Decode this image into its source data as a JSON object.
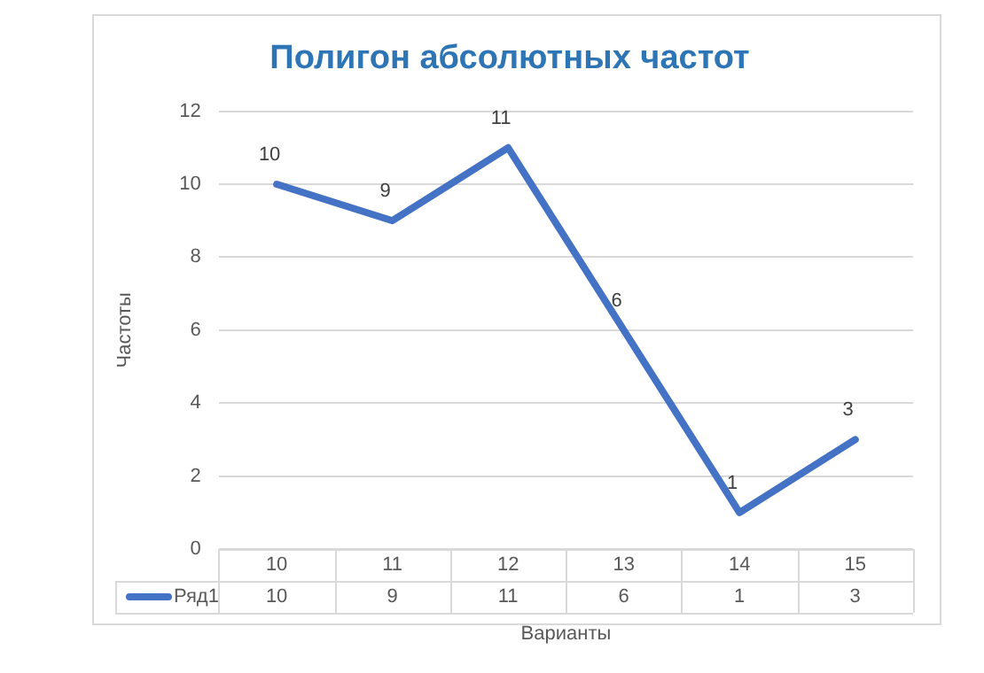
{
  "chart_data": {
    "type": "line",
    "title": "Полигон абсолютных частот",
    "xlabel": "Варианты",
    "ylabel": "Частоты",
    "categories": [
      "10",
      "11",
      "12",
      "13",
      "14",
      "15"
    ],
    "series": [
      {
        "name": "Ряд1",
        "color": "#4472c4",
        "values": [
          10,
          9,
          11,
          6,
          1,
          3
        ],
        "value_labels": [
          "10",
          "9",
          "11",
          "6",
          "1",
          "3"
        ]
      }
    ],
    "ylim": [
      0,
      12
    ],
    "yticks": [
      0,
      2,
      4,
      6,
      8,
      10,
      12
    ],
    "grid": "y",
    "legend": "bottom",
    "data_labels": true,
    "marker": "none",
    "line_style": "solid"
  }
}
